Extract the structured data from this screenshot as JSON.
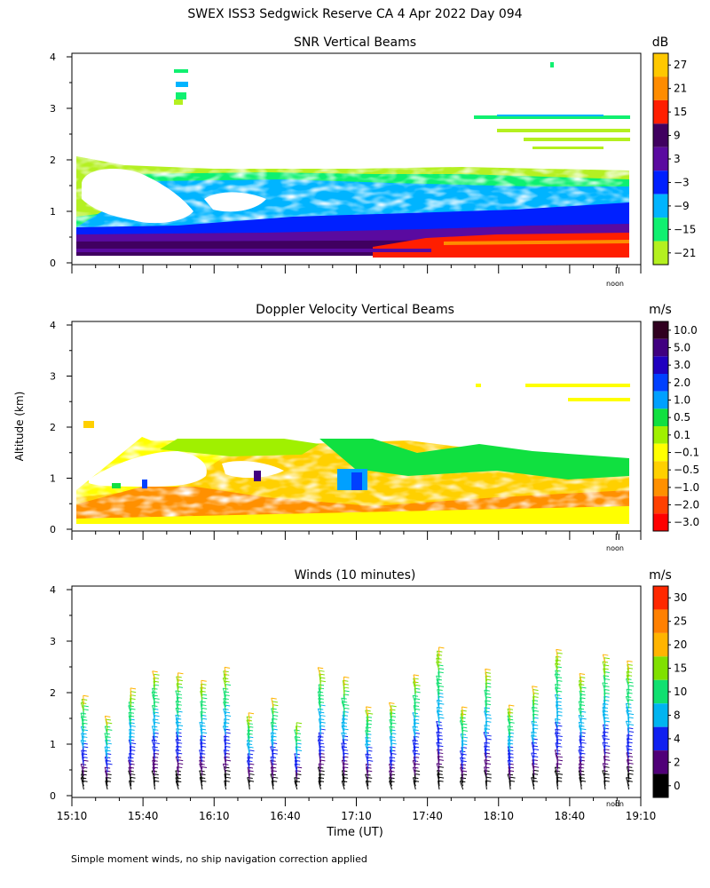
{
  "title": "SWEX ISS3 Sedgwick Reserve CA    4 Apr 2022 Day 094",
  "ylabel": "Altitude (km)",
  "xlabel": "Time (UT)",
  "footnote": "Simple moment winds, no ship navigation correction applied",
  "noon_label": "noon",
  "chart_data": [
    {
      "type": "heatmap",
      "title": "SNR Vertical Beams",
      "units": "dB",
      "x_range_minutes_utc": [
        910,
        1150
      ],
      "ylim": [
        0,
        4
      ],
      "yticks": [
        "0",
        "1",
        "2",
        "3",
        "4"
      ],
      "colorbar": {
        "labels": [
          "27",
          "21",
          "15",
          "9",
          "3",
          "−3",
          "−9",
          "−15",
          "−21"
        ],
        "colors": [
          "#FFC800",
          "#FF8C00",
          "#FF1E00",
          "#400060",
          "#5A0AA0",
          "#0020FF",
          "#00B4FF",
          "#10F070",
          "#B4F020"
        ]
      }
    },
    {
      "type": "heatmap",
      "title": "Doppler Velocity Vertical Beams",
      "units": "m/s",
      "x_range_minutes_utc": [
        910,
        1150
      ],
      "ylim": [
        0,
        4
      ],
      "yticks": [
        "0",
        "1",
        "2",
        "3",
        "4"
      ],
      "colorbar": {
        "labels": [
          "10.0",
          "5.0",
          "3.0",
          "2.0",
          "1.0",
          "0.5",
          "0.1",
          "−0.1",
          "−0.5",
          "−1.0",
          "−2.0",
          "−3.0"
        ],
        "colors": [
          "#300020",
          "#400080",
          "#2000C0",
          "#0040FF",
          "#00A0FF",
          "#10E040",
          "#A0F000",
          "#FFFF00",
          "#FFD000",
          "#FF9000",
          "#FF4000",
          "#FF0000"
        ]
      }
    },
    {
      "type": "wind_barbs",
      "title": "Winds (10 minutes)",
      "units": "m/s",
      "x_range_minutes_utc": [
        910,
        1150
      ],
      "ylim": [
        0,
        4
      ],
      "yticks": [
        "0",
        "1",
        "2",
        "3",
        "4"
      ],
      "xticks": [
        "15:10",
        "15:40",
        "16:10",
        "16:40",
        "17:10",
        "17:40",
        "18:10",
        "18:40",
        "19:10"
      ],
      "colorbar": {
        "labels": [
          "30",
          "25",
          "20",
          "15",
          "10",
          "8",
          "4",
          "2",
          "0"
        ],
        "colors": [
          "#FF2800",
          "#FF8000",
          "#FFB400",
          "#80E000",
          "#10E070",
          "#00B4F0",
          "#1020F0",
          "#500078",
          "#000000"
        ]
      }
    }
  ]
}
